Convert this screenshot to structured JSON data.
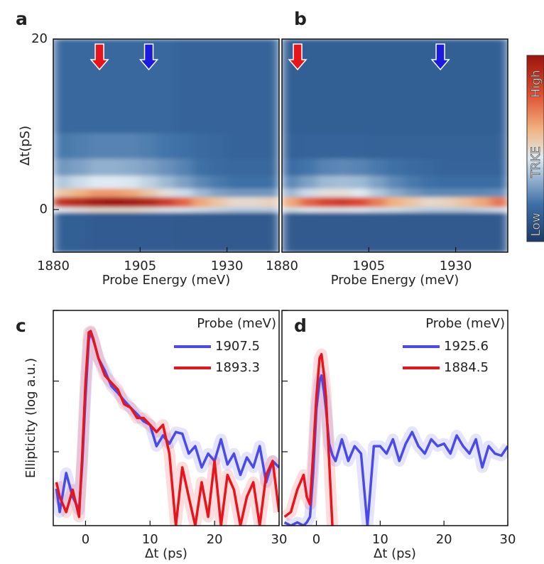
{
  "chart_data": [
    {
      "type": "heatmap",
      "panel": "a",
      "ylabel": "Δt(pS)",
      "xlabel": "Probe Energy (meV)",
      "xlim": [
        1880,
        1945
      ],
      "ylim": [
        -5,
        20
      ],
      "xticks": [
        1880,
        1905,
        1930
      ],
      "yticks": [
        0,
        20
      ],
      "x_edges": [
        1880,
        1885,
        1890,
        1895,
        1900,
        1905,
        1910,
        1915,
        1920,
        1925,
        1930,
        1935,
        1940,
        1945
      ],
      "y_edges": [
        -5,
        -0.3,
        0.3,
        1.5,
        2.5,
        4,
        6,
        9,
        20
      ],
      "z": [
        [
          0.14,
          0.14,
          0.13,
          0.13,
          0.13,
          0.13,
          0.13,
          0.12,
          0.12,
          0.12,
          0.12,
          0.12,
          0.12
        ],
        [
          0.45,
          0.48,
          0.5,
          0.5,
          0.5,
          0.48,
          0.46,
          0.44,
          0.42,
          0.4,
          0.38,
          0.38,
          0.38
        ],
        [
          0.88,
          0.92,
          0.97,
          0.98,
          0.97,
          0.93,
          0.85,
          0.75,
          0.62,
          0.55,
          0.5,
          0.5,
          0.52
        ],
        [
          0.55,
          0.6,
          0.65,
          0.65,
          0.62,
          0.55,
          0.48,
          0.42,
          0.35,
          0.3,
          0.28,
          0.28,
          0.28
        ],
        [
          0.38,
          0.42,
          0.45,
          0.45,
          0.44,
          0.4,
          0.35,
          0.3,
          0.25,
          0.22,
          0.2,
          0.2,
          0.2
        ],
        [
          0.28,
          0.3,
          0.33,
          0.33,
          0.32,
          0.3,
          0.27,
          0.24,
          0.2,
          0.18,
          0.17,
          0.17,
          0.17
        ],
        [
          0.22,
          0.23,
          0.24,
          0.24,
          0.24,
          0.23,
          0.21,
          0.2,
          0.18,
          0.17,
          0.16,
          0.16,
          0.16
        ],
        [
          0.17,
          0.17,
          0.17,
          0.17,
          0.17,
          0.17,
          0.17,
          0.16,
          0.16,
          0.16,
          0.16,
          0.16,
          0.16
        ]
      ],
      "colormap": [
        [
          0,
          "#1c3a6b"
        ],
        [
          0.2,
          "#3d6fa6"
        ],
        [
          0.45,
          "#dfeaf2"
        ],
        [
          0.6,
          "#f0b482"
        ],
        [
          0.8,
          "#de4a2c"
        ],
        [
          1,
          "#9c140e"
        ]
      ],
      "arrows": [
        {
          "x": 1893.3,
          "color": "#e8141b"
        },
        {
          "x": 1907.5,
          "color": "#1a1ae0"
        }
      ]
    },
    {
      "type": "heatmap",
      "panel": "b",
      "xlabel": "Probe Energy (meV)",
      "xlim": [
        1880,
        1945
      ],
      "ylim": [
        -5,
        20
      ],
      "xticks": [
        1880,
        1905,
        1930
      ],
      "x_edges": [
        1880,
        1885,
        1890,
        1895,
        1900,
        1905,
        1910,
        1915,
        1920,
        1925,
        1930,
        1935,
        1940,
        1945
      ],
      "y_edges": [
        -5,
        -0.3,
        0.3,
        1.5,
        2.5,
        4,
        6,
        9,
        20
      ],
      "z": [
        [
          0.12,
          0.12,
          0.12,
          0.12,
          0.12,
          0.12,
          0.12,
          0.12,
          0.12,
          0.12,
          0.12,
          0.12,
          0.12
        ],
        [
          0.42,
          0.45,
          0.46,
          0.46,
          0.45,
          0.43,
          0.42,
          0.4,
          0.38,
          0.38,
          0.38,
          0.4,
          0.42
        ],
        [
          0.62,
          0.75,
          0.82,
          0.85,
          0.8,
          0.7,
          0.6,
          0.55,
          0.5,
          0.52,
          0.56,
          0.62,
          0.72
        ],
        [
          0.35,
          0.42,
          0.48,
          0.48,
          0.45,
          0.38,
          0.32,
          0.28,
          0.25,
          0.25,
          0.25,
          0.25,
          0.26
        ],
        [
          0.25,
          0.3,
          0.35,
          0.36,
          0.35,
          0.3,
          0.25,
          0.22,
          0.2,
          0.19,
          0.19,
          0.19,
          0.19
        ],
        [
          0.19,
          0.21,
          0.24,
          0.25,
          0.24,
          0.22,
          0.2,
          0.18,
          0.17,
          0.16,
          0.16,
          0.16,
          0.16
        ],
        [
          0.15,
          0.16,
          0.16,
          0.16,
          0.16,
          0.15,
          0.15,
          0.15,
          0.15,
          0.15,
          0.15,
          0.15,
          0.15
        ],
        [
          0.14,
          0.14,
          0.14,
          0.14,
          0.14,
          0.14,
          0.14,
          0.14,
          0.14,
          0.14,
          0.14,
          0.14,
          0.14
        ]
      ],
      "colormap": [
        [
          0,
          "#1c3a6b"
        ],
        [
          0.2,
          "#3d6fa6"
        ],
        [
          0.45,
          "#dfeaf2"
        ],
        [
          0.6,
          "#f0b482"
        ],
        [
          0.8,
          "#de4a2c"
        ],
        [
          1,
          "#9c140e"
        ]
      ],
      "arrows": [
        {
          "x": 1884.5,
          "color": "#e8141b"
        },
        {
          "x": 1925.6,
          "color": "#1a1ae0"
        }
      ],
      "colorbar_labels": [
        "High",
        "TRKE",
        "Low"
      ]
    },
    {
      "type": "line",
      "panel": "c",
      "ylabel": "Ellipticity (log a.u.)",
      "xlabel": "Δt (ps)",
      "legend_title": "Probe (meV)",
      "ylog": true,
      "xlim": [
        -5,
        30
      ],
      "ylim": [
        0.0009,
        1
      ],
      "xticks": [
        0,
        10,
        20,
        30
      ],
      "yticks": [
        0.01,
        0.1,
        1
      ],
      "x": [
        -4.5,
        -4,
        -3,
        -2,
        -1,
        -0.5,
        0,
        0.5,
        0.8,
        1.2,
        1.5,
        2,
        3,
        4,
        5,
        6,
        7,
        8,
        9,
        10,
        11,
        12,
        13,
        14,
        15,
        16,
        17,
        18,
        19,
        20,
        21,
        22,
        23,
        24,
        25,
        26,
        27,
        28,
        29,
        30
      ],
      "series": [
        {
          "name": "1907.5",
          "color": "#4a4ae8",
          "values": [
            0.003,
            0.0014,
            0.005,
            0.0023,
            0.0015,
            0.007,
            0.06,
            0.38,
            0.49,
            0.38,
            0.31,
            0.21,
            0.14,
            0.085,
            0.068,
            0.053,
            0.042,
            0.034,
            0.027,
            0.024,
            0.012,
            0.017,
            0.013,
            0.019,
            0.018,
            0.0094,
            0.012,
            0.006,
            0.0094,
            0.0074,
            0.015,
            0.0066,
            0.0094,
            0.0047,
            0.0083,
            0.006,
            0.012,
            0.0037,
            0.0074,
            0.006
          ]
        },
        {
          "name": "1893.3",
          "color": "#e8141b",
          "values": [
            0.0037,
            0.0023,
            0.0014,
            0.0029,
            0.0012,
            0.0094,
            0.095,
            0.49,
            0.51,
            0.4,
            0.31,
            0.21,
            0.12,
            0.095,
            0.076,
            0.047,
            0.042,
            0.03,
            0.03,
            0.024,
            0.019,
            0.024,
            0.0094,
            0.0009,
            0.006,
            0.0023,
            0.0009,
            0.0037,
            0.0012,
            0.0074,
            0.0009,
            0.0047,
            0.0029,
            0.0009,
            0.0023,
            0.0037,
            0.0009,
            0.0047,
            0.0074,
            0.0014
          ]
        }
      ]
    },
    {
      "type": "line",
      "panel": "d",
      "xlabel": "Δt (ps)",
      "legend_title": "Probe (meV)",
      "ylog": true,
      "xlim": [
        -5.4,
        30
      ],
      "ylim": [
        0.0009,
        1
      ],
      "xticks": [
        0,
        10,
        20,
        30
      ],
      "yticks": [
        0.01,
        0.1,
        1
      ],
      "x": [
        -5,
        -4,
        -3,
        -2,
        -1.5,
        -1,
        -0.5,
        0,
        0.5,
        0.8,
        1.2,
        1.5,
        2,
        2.5,
        3,
        4,
        5,
        6,
        7,
        8,
        9,
        10,
        11,
        12,
        13,
        14,
        15,
        16,
        17,
        18,
        19,
        20,
        21,
        22,
        23,
        24,
        25,
        26,
        27,
        28,
        29,
        30
      ],
      "series": [
        {
          "name": "1925.6",
          "color": "#4a4ae8",
          "values": [
            0.001,
            0.0009,
            0.001,
            0.0009,
            0.001,
            0.0012,
            0.005,
            0.04,
            0.1,
            0.12,
            0.07,
            0.04,
            0.013,
            0.009,
            0.0074,
            0.015,
            0.0074,
            0.012,
            0.0094,
            0.0009,
            0.012,
            0.012,
            0.0094,
            0.015,
            0.0074,
            0.013,
            0.019,
            0.012,
            0.0094,
            0.015,
            0.012,
            0.013,
            0.0094,
            0.017,
            0.012,
            0.0094,
            0.015,
            0.006,
            0.012,
            0.0094,
            0.0088,
            0.012
          ]
        },
        {
          "name": "1884.5",
          "color": "#e8141b",
          "values": [
            0.0012,
            0.0014,
            0.0029,
            0.0047,
            0.0023,
            0.0018,
            0.0094,
            0.06,
            0.21,
            0.24,
            0.12,
            0.06,
            0.0074,
            0.0009,
            null,
            null,
            null,
            null,
            null,
            null,
            null,
            null,
            null,
            null,
            null,
            null,
            null,
            null,
            null,
            null,
            null,
            null,
            null,
            null,
            null,
            null,
            null,
            null,
            null,
            null,
            null,
            0.0023
          ]
        }
      ]
    }
  ]
}
